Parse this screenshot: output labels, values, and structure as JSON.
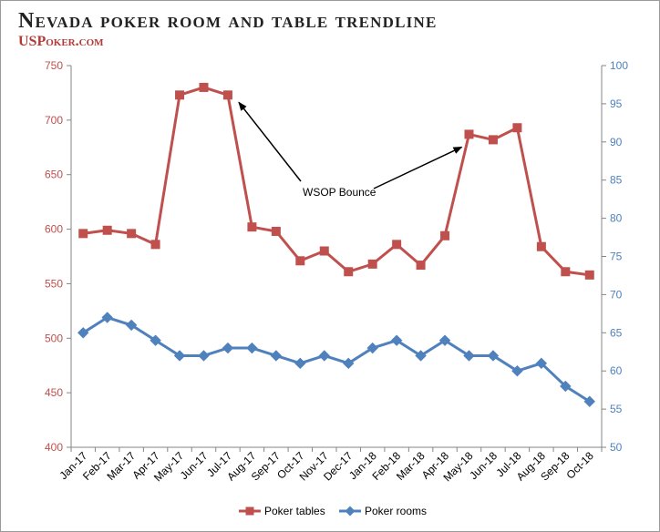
{
  "page": {
    "title": "Nevada poker room and table trendline",
    "brand": "USPoker.com"
  },
  "chart_data": {
    "type": "line",
    "categories": [
      "Jan-17",
      "Feb-17",
      "Mar-17",
      "Apr-17",
      "May-17",
      "Jun-17",
      "Jul-17",
      "Aug-17",
      "Sep-17",
      "Oct-17",
      "Nov-17",
      "Dec-17",
      "Jan-18",
      "Feb-18",
      "Mar-18",
      "Apr-18",
      "May-18",
      "Jun-18",
      "Jul-18",
      "Aug-18",
      "Sep-18",
      "Oct-18"
    ],
    "series": [
      {
        "name": "Poker tables",
        "axis": "left",
        "color": "#c0504d",
        "marker": "square",
        "values": [
          596,
          599,
          596,
          586,
          723,
          730,
          723,
          602,
          598,
          571,
          580,
          561,
          568,
          586,
          567,
          594,
          687,
          682,
          693,
          584,
          561,
          558
        ]
      },
      {
        "name": "Poker rooms",
        "axis": "right",
        "color": "#4f81bd",
        "marker": "diamond",
        "values": [
          65,
          67,
          66,
          64,
          62,
          62,
          63,
          63,
          62,
          61,
          62,
          61,
          63,
          64,
          62,
          64,
          62,
          62,
          60,
          61,
          58,
          56
        ]
      }
    ],
    "y_left": {
      "min": 400,
      "max": 750,
      "step": 50,
      "color": "#c0504d"
    },
    "y_right": {
      "min": 50,
      "max": 100,
      "step": 5,
      "color": "#4f81bd"
    },
    "annotation": {
      "text": "WSOP Bounce",
      "points_to": [
        "Jul-17",
        "May-18"
      ]
    },
    "grid": false,
    "legend": "bottom"
  }
}
